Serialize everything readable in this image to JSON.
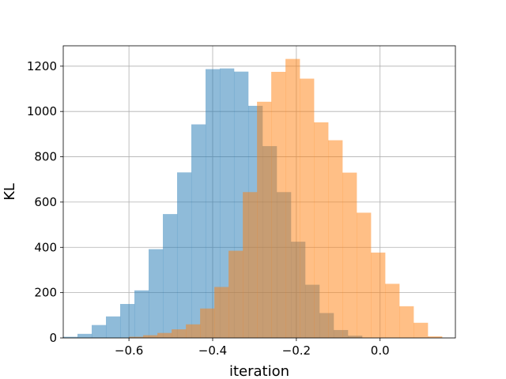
{
  "chart_data": {
    "type": "histogram",
    "title": "",
    "xlabel": "iteration",
    "ylabel": "KL",
    "xlim": [
      -0.757,
      0.18
    ],
    "ylim": [
      0,
      1290
    ],
    "xticks": [
      -0.6,
      -0.4,
      -0.2,
      0.0
    ],
    "xtick_labels": [
      "−0.6",
      "−0.4",
      "−0.2",
      "0.0"
    ],
    "yticks": [
      0,
      200,
      400,
      600,
      800,
      1000,
      1200
    ],
    "ytick_labels": [
      "0",
      "200",
      "400",
      "600",
      "800",
      "1000",
      "1200"
    ],
    "grid": true,
    "series": [
      {
        "color": "#1f77b4",
        "alpha": 0.5,
        "bin_edges": [
          -0.757,
          -0.723,
          -0.689,
          -0.655,
          -0.621,
          -0.587,
          -0.553,
          -0.519,
          -0.485,
          -0.451,
          -0.417,
          -0.383,
          -0.349,
          -0.315,
          -0.281,
          -0.247,
          -0.213,
          -0.179,
          -0.145,
          -0.111,
          -0.077,
          -0.043
        ],
        "counts": [
          5,
          18,
          57,
          95,
          150,
          210,
          392,
          547,
          731,
          943,
          1187,
          1190,
          1176,
          1025,
          847,
          644,
          425,
          235,
          110,
          35,
          10
        ]
      },
      {
        "color": "#ff7f0e",
        "alpha": 0.5,
        "bin_edges": [
          -0.6,
          -0.566,
          -0.532,
          -0.498,
          -0.464,
          -0.43,
          -0.396,
          -0.362,
          -0.328,
          -0.294,
          -0.26,
          -0.226,
          -0.192,
          -0.158,
          -0.124,
          -0.09,
          -0.056,
          -0.022,
          0.012,
          0.046,
          0.08,
          0.114,
          0.148
        ],
        "counts": [
          5,
          12,
          22,
          38,
          60,
          130,
          225,
          385,
          644,
          1043,
          1175,
          1232,
          1145,
          952,
          873,
          730,
          553,
          377,
          239,
          140,
          67,
          7
        ]
      }
    ]
  }
}
